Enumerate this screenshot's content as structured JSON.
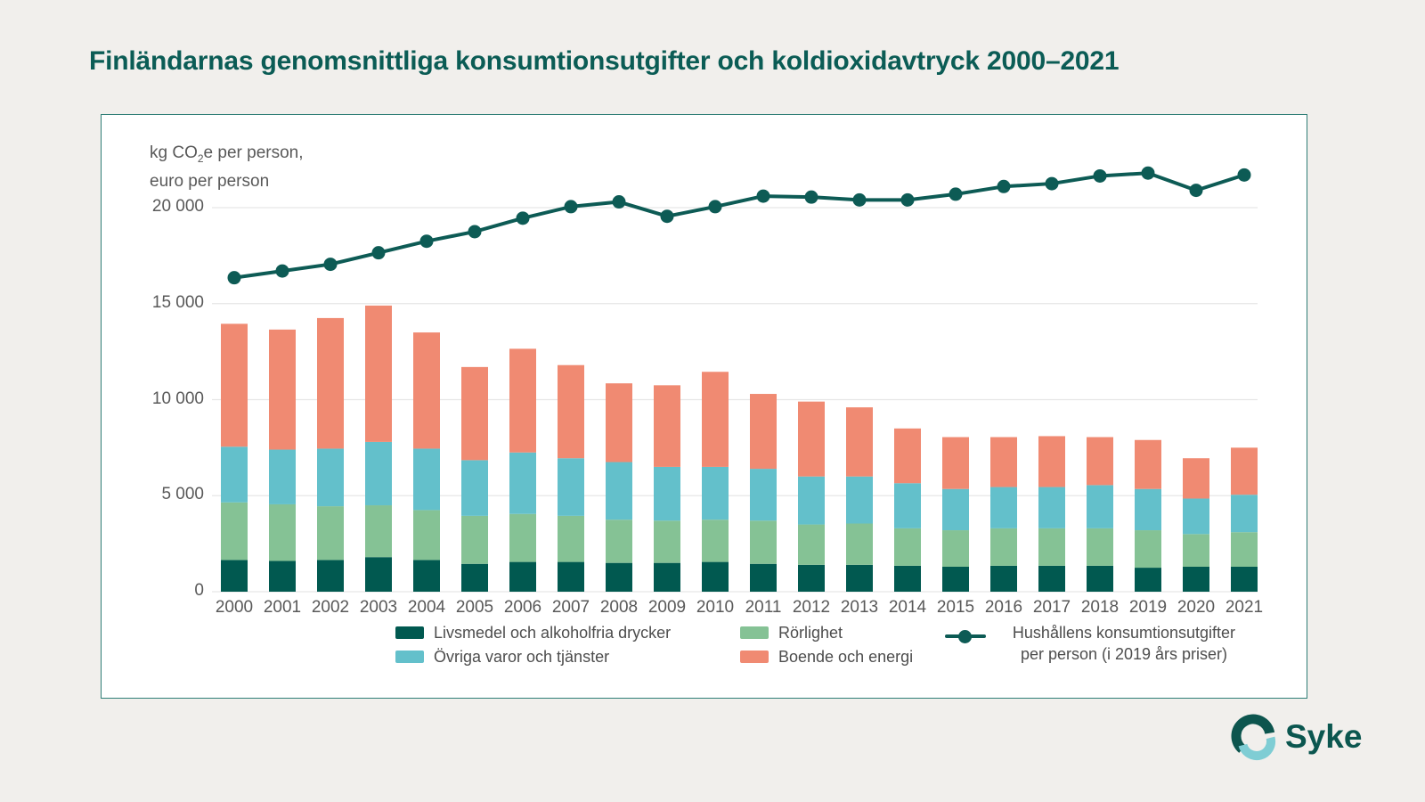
{
  "page": {
    "title": "Finländarnas genomsnittliga konsumtionsutgifter och koldioxidavtryck 2000–2021",
    "background_color": "#f1efec",
    "title_color": "#0b5c55",
    "panel_border_color": "#2f7e76"
  },
  "footer": {
    "logo_text": "Syke",
    "logo_dark_color": "#0d554e",
    "logo_light_color": "#7fcdd4"
  },
  "chart_data": {
    "type": "stacked-bar+line",
    "y_axis_label": {
      "line1_prefix": "kg CO",
      "line1_sub": "2",
      "line1_suffix": "e per person,",
      "line2": "euro per person"
    },
    "grid": true,
    "legend_position": "bottom",
    "ylim": [
      0,
      22000
    ],
    "y_ticks": [
      {
        "value": 0,
        "label": "0"
      },
      {
        "value": 5000,
        "label": "5 000"
      },
      {
        "value": 10000,
        "label": "10 000"
      },
      {
        "value": 15000,
        "label": "15 000"
      },
      {
        "value": 20000,
        "label": "20 000"
      }
    ],
    "categories": [
      "2000",
      "2001",
      "2002",
      "2003",
      "2004",
      "2005",
      "2006",
      "2007",
      "2008",
      "2009",
      "2010",
      "2011",
      "2012",
      "2013",
      "2014",
      "2015",
      "2016",
      "2017",
      "2018",
      "2019",
      "2020",
      "2021"
    ],
    "series": [
      {
        "name": "Livsmedel och alkoholfria drycker",
        "type": "bar",
        "color": "#015950",
        "values": [
          1650,
          1600,
          1650,
          1800,
          1650,
          1450,
          1550,
          1550,
          1500,
          1500,
          1550,
          1450,
          1400,
          1400,
          1350,
          1300,
          1350,
          1350,
          1350,
          1250,
          1300,
          1300
        ]
      },
      {
        "name": "Rörlighet",
        "type": "bar",
        "color": "#85c295",
        "values": [
          3000,
          2950,
          2800,
          2700,
          2600,
          2500,
          2500,
          2400,
          2250,
          2200,
          2200,
          2250,
          2100,
          2150,
          1950,
          1900,
          1950,
          1950,
          1950,
          1950,
          1700,
          1800
        ]
      },
      {
        "name": "Övriga varor och tjänster",
        "type": "bar",
        "color": "#63c0cb",
        "values": [
          2900,
          2850,
          3000,
          3300,
          3200,
          2900,
          3200,
          3000,
          3000,
          2800,
          2750,
          2700,
          2500,
          2450,
          2350,
          2150,
          2150,
          2150,
          2250,
          2150,
          1850,
          1950
        ]
      },
      {
        "name": "Boende och energi",
        "type": "bar",
        "color": "#f08a72",
        "values": [
          6400,
          6250,
          6800,
          7100,
          6050,
          4850,
          5400,
          4850,
          4100,
          4250,
          4950,
          3900,
          3900,
          3600,
          2850,
          2700,
          2600,
          2650,
          2500,
          2550,
          2100,
          2450
        ]
      },
      {
        "name": "Hushållens konsumtionsutgifter per person (i 2019 års priser)",
        "type": "line",
        "color": "#0d5b55",
        "values": [
          16350,
          16700,
          17050,
          17650,
          18250,
          18750,
          19450,
          20050,
          20300,
          19550,
          20050,
          20600,
          20550,
          20400,
          20400,
          20700,
          21100,
          21250,
          21650,
          21800,
          20900,
          21700
        ]
      }
    ],
    "legend": {
      "col1": [
        {
          "label": "Livsmedel och alkoholfria drycker",
          "color": "#015950"
        },
        {
          "label": "Övriga varor och tjänster",
          "color": "#63c0cb"
        }
      ],
      "col2": [
        {
          "label": "Rörlighet",
          "color": "#85c295"
        },
        {
          "label": "Boende och energi",
          "color": "#f08a72"
        }
      ],
      "line": {
        "label_line1": "Hushållens konsumtionsutgifter",
        "label_line2": "per person (i 2019 års priser)",
        "color": "#0d5b55"
      }
    }
  }
}
